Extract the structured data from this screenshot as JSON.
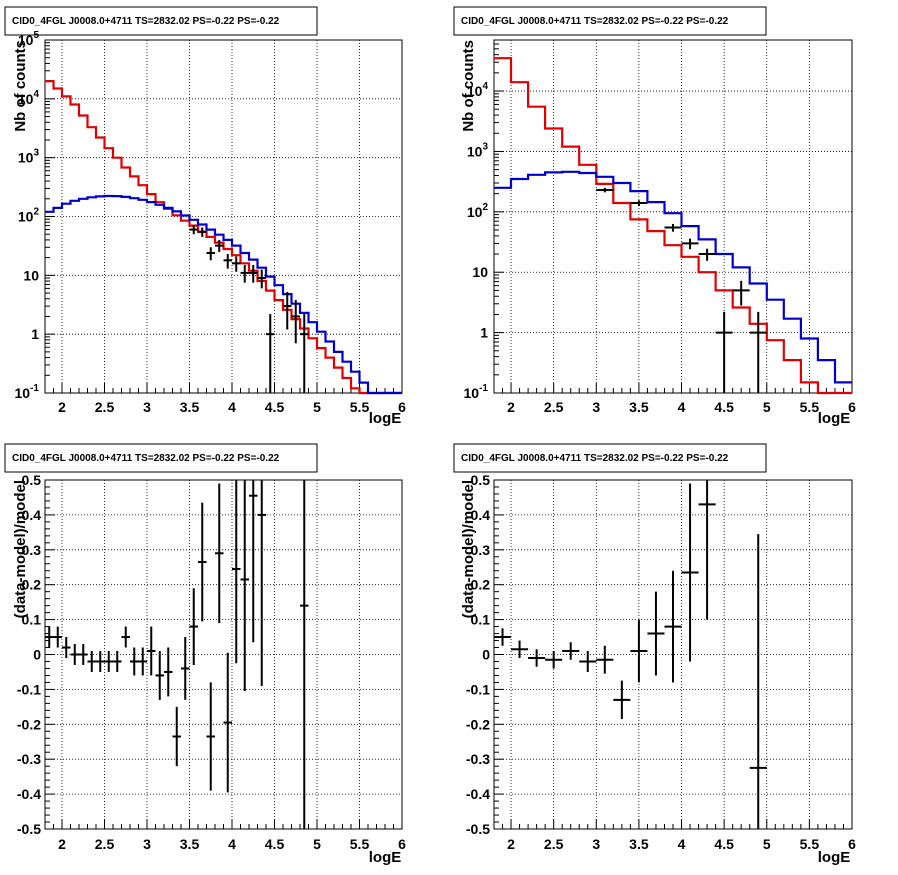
{
  "colors": {
    "total": "#e00000",
    "component": "#0000cc",
    "data": "#000000",
    "grid": "#000000"
  },
  "chart_data": [
    {
      "type": "line",
      "title": "CID0_4FGL J0008.0+4711 TS=2832.02 PS=-0.22 PS=-0.22",
      "xlabel": "logE",
      "ylabel": "Nb of counts",
      "xlim": [
        1.8,
        6.0
      ],
      "ylim": [
        0.1,
        100000
      ],
      "log_y": true,
      "grid": true,
      "x_ticks": [
        "2",
        "2.5",
        "3",
        "3.5",
        "4",
        "4.5",
        "5",
        "5.5",
        "6"
      ],
      "y_ticks": [
        "10^-1",
        "1",
        "10",
        "10^2",
        "10^3",
        "10^4",
        "10^5"
      ],
      "x_edges": [
        1.8,
        1.9,
        2.0,
        2.1,
        2.2,
        2.3,
        2.4,
        2.5,
        2.6,
        2.7,
        2.8,
        2.9,
        3.0,
        3.1,
        3.2,
        3.3,
        3.4,
        3.5,
        3.6,
        3.7,
        3.8,
        3.9,
        4.0,
        4.1,
        4.2,
        4.3,
        4.4,
        4.5,
        4.6,
        4.7,
        4.8,
        4.9,
        5.0,
        5.1,
        5.2,
        5.3,
        5.4,
        5.5,
        5.6,
        5.7,
        5.8,
        5.9,
        6.0
      ],
      "series": [
        {
          "values": [
            20000,
            15000,
            11000,
            8000,
            5200,
            3300,
            2200,
            1450,
            1000,
            680,
            480,
            340,
            240,
            175,
            135,
            105,
            85,
            70,
            55,
            45,
            36,
            28,
            22,
            16,
            12,
            8,
            5.5,
            3.8,
            2.6,
            1.8,
            1.25,
            0.85,
            0.58,
            0.4,
            0.27,
            0.18,
            0.12,
            0.1,
            0.1,
            0.1,
            0.1,
            0.1
          ]
        },
        {
          "values": [
            120,
            140,
            165,
            185,
            200,
            212,
            220,
            223,
            222,
            215,
            205,
            192,
            176,
            158,
            140,
            122,
            104,
            88,
            73,
            60,
            49,
            40,
            32,
            24,
            18.5,
            13.5,
            9.5,
            6.8,
            4.8,
            3.3,
            2.3,
            1.6,
            1.1,
            0.75,
            0.5,
            0.34,
            0.23,
            0.15,
            0.1,
            0.1,
            0.1,
            0.1
          ]
        }
      ],
      "points": [
        {
          "x": 3.55,
          "y": 60,
          "ylo": 50,
          "yhi": 70
        },
        {
          "x": 3.65,
          "y": 55,
          "ylo": 45,
          "yhi": 65
        },
        {
          "x": 3.75,
          "y": 24,
          "ylo": 18,
          "yhi": 30
        },
        {
          "x": 3.85,
          "y": 32,
          "ylo": 25,
          "yhi": 40
        },
        {
          "x": 3.95,
          "y": 18,
          "ylo": 13,
          "yhi": 23
        },
        {
          "x": 4.05,
          "y": 16,
          "ylo": 11.5,
          "yhi": 21
        },
        {
          "x": 4.15,
          "y": 11,
          "ylo": 7.5,
          "yhi": 15
        },
        {
          "x": 4.25,
          "y": 11,
          "ylo": 7.5,
          "yhi": 15
        },
        {
          "x": 4.35,
          "y": 9,
          "ylo": 6,
          "yhi": 12.5
        },
        {
          "x": 4.45,
          "y": 1,
          "ylo": 0.1,
          "yhi": 2.2
        },
        {
          "x": 4.65,
          "y": 3,
          "ylo": 1.2,
          "yhi": 5.2
        },
        {
          "x": 4.75,
          "y": 2,
          "ylo": 0.7,
          "yhi": 3.8
        },
        {
          "x": 4.85,
          "y": 1,
          "ylo": 0.1,
          "yhi": 2.2
        }
      ]
    },
    {
      "type": "line",
      "title": "CID0_4FGL J0008.0+4711 TS=2832.02 PS=-0.22 PS=-0.22",
      "xlabel": "logE",
      "ylabel": "Nb of counts",
      "xlim": [
        1.8,
        6.0
      ],
      "ylim": [
        0.1,
        70000
      ],
      "log_y": true,
      "grid": true,
      "x_ticks": [
        "2",
        "2.5",
        "3",
        "3.5",
        "4",
        "4.5",
        "5",
        "5.5",
        "6"
      ],
      "y_ticks": [
        "10^-1",
        "1",
        "10",
        "10^2",
        "10^3",
        "10^4"
      ],
      "x_edges": [
        1.8,
        2.0,
        2.2,
        2.4,
        2.6,
        2.8,
        3.0,
        3.2,
        3.4,
        3.6,
        3.8,
        4.0,
        4.2,
        4.4,
        4.6,
        4.8,
        5.0,
        5.2,
        5.4,
        5.6,
        5.8,
        6.0
      ],
      "series": [
        {
          "values": [
            35000,
            14000,
            5500,
            2400,
            1200,
            600,
            290,
            140,
            75,
            48,
            28,
            18,
            10,
            5,
            2.6,
            1.4,
            0.75,
            0.35,
            0.15,
            0.1,
            0.1
          ]
        },
        {
          "values": [
            250,
            350,
            410,
            450,
            460,
            440,
            380,
            300,
            220,
            145,
            95,
            58,
            35,
            20,
            12,
            6.5,
            3.5,
            1.7,
            0.8,
            0.35,
            0.15
          ]
        }
      ],
      "points": [
        {
          "x": 3.1,
          "y": 230,
          "ylo": 210,
          "yhi": 250
        },
        {
          "x": 3.5,
          "y": 140,
          "ylo": 125,
          "yhi": 155
        },
        {
          "x": 3.9,
          "y": 55,
          "ylo": 47,
          "yhi": 63
        },
        {
          "x": 4.1,
          "y": 30,
          "ylo": 24,
          "yhi": 36
        },
        {
          "x": 4.3,
          "y": 20,
          "ylo": 15.5,
          "yhi": 24.5
        },
        {
          "x": 4.5,
          "y": 1,
          "ylo": 0.1,
          "yhi": 2.2
        },
        {
          "x": 4.7,
          "y": 5,
          "ylo": 2.8,
          "yhi": 7.2
        },
        {
          "x": 4.9,
          "y": 1,
          "ylo": 0.1,
          "yhi": 2.2
        }
      ]
    },
    {
      "type": "scatter",
      "title": "CID0_4FGL J0008.0+4711 TS=2832.02 PS=-0.22 PS=-0.22",
      "xlabel": "logE",
      "ylabel": "(data-model)/model",
      "xlim": [
        1.8,
        6.0
      ],
      "ylim": [
        -0.5,
        0.5
      ],
      "grid": true,
      "x_ticks": [
        "2",
        "2.5",
        "3",
        "3.5",
        "4",
        "4.5",
        "5",
        "5.5",
        "6"
      ],
      "y_ticks": [
        "-0.5",
        "-0.4",
        "-0.3",
        "-0.2",
        "-0.1",
        "0",
        "0.1",
        "0.2",
        "0.3",
        "0.4",
        "0.5"
      ],
      "points": [
        {
          "x": 1.85,
          "y": 0.05,
          "yerr": 0.03
        },
        {
          "x": 1.95,
          "y": 0.05,
          "yerr": 0.03
        },
        {
          "x": 2.05,
          "y": 0.02,
          "yerr": 0.03
        },
        {
          "x": 2.15,
          "y": 0.0,
          "yerr": 0.03
        },
        {
          "x": 2.25,
          "y": 0.0,
          "yerr": 0.03
        },
        {
          "x": 2.35,
          "y": -0.02,
          "yerr": 0.03
        },
        {
          "x": 2.45,
          "y": -0.02,
          "yerr": 0.03
        },
        {
          "x": 2.55,
          "y": -0.02,
          "yerr": 0.03
        },
        {
          "x": 2.65,
          "y": -0.02,
          "yerr": 0.03
        },
        {
          "x": 2.75,
          "y": 0.05,
          "yerr": 0.03
        },
        {
          "x": 2.85,
          "y": -0.02,
          "yerr": 0.04
        },
        {
          "x": 2.95,
          "y": -0.02,
          "yerr": 0.04
        },
        {
          "x": 3.05,
          "y": 0.01,
          "yerr": 0.07
        },
        {
          "x": 3.15,
          "y": -0.06,
          "yerr": 0.07
        },
        {
          "x": 3.25,
          "y": -0.05,
          "yerr": 0.07
        },
        {
          "x": 3.35,
          "y": -0.235,
          "yerr": 0.085
        },
        {
          "x": 3.45,
          "y": -0.04,
          "yerr": 0.09
        },
        {
          "x": 3.55,
          "y": 0.08,
          "yerr": 0.11
        },
        {
          "x": 3.65,
          "y": 0.265,
          "yerr": 0.17
        },
        {
          "x": 3.75,
          "y": -0.235,
          "yerr": 0.155
        },
        {
          "x": 3.85,
          "y": 0.29,
          "yerr": 0.2
        },
        {
          "x": 3.95,
          "y": -0.195,
          "yerr": 0.2
        },
        {
          "x": 4.05,
          "y": 0.245,
          "yerr": 0.27
        },
        {
          "x": 4.15,
          "y": 0.215,
          "yerr": 0.32
        },
        {
          "x": 4.25,
          "y": 0.455,
          "yerr": 0.42
        },
        {
          "x": 4.35,
          "y": 0.4,
          "yerr": 0.49
        },
        {
          "x": 4.85,
          "y": 0.14,
          "yerr": 0.9
        }
      ]
    },
    {
      "type": "scatter",
      "title": "CID0_4FGL J0008.0+4711 TS=2832.02 PS=-0.22 PS=-0.22",
      "xlabel": "logE",
      "ylabel": "(data-model)/model",
      "xlim": [
        1.8,
        6.0
      ],
      "ylim": [
        -0.5,
        0.5
      ],
      "grid": true,
      "x_ticks": [
        "2",
        "2.5",
        "3",
        "3.5",
        "4",
        "4.5",
        "5",
        "5.5",
        "6"
      ],
      "y_ticks": [
        "-0.5",
        "-0.4",
        "-0.3",
        "-0.2",
        "-0.1",
        "0",
        "0.1",
        "0.2",
        "0.3",
        "0.4",
        "0.5"
      ],
      "points": [
        {
          "x": 1.9,
          "y": 0.05,
          "yerr": 0.025
        },
        {
          "x": 2.1,
          "y": 0.015,
          "yerr": 0.025
        },
        {
          "x": 2.3,
          "y": -0.01,
          "yerr": 0.025
        },
        {
          "x": 2.5,
          "y": -0.015,
          "yerr": 0.025
        },
        {
          "x": 2.7,
          "y": 0.01,
          "yerr": 0.025
        },
        {
          "x": 2.9,
          "y": -0.02,
          "yerr": 0.03
        },
        {
          "x": 3.1,
          "y": -0.015,
          "yerr": 0.04
        },
        {
          "x": 3.3,
          "y": -0.13,
          "yerr": 0.055
        },
        {
          "x": 3.5,
          "y": 0.01,
          "yerr": 0.09
        },
        {
          "x": 3.7,
          "y": 0.06,
          "yerr": 0.12
        },
        {
          "x": 3.9,
          "y": 0.08,
          "yerr": 0.16
        },
        {
          "x": 4.1,
          "y": 0.235,
          "yerr": 0.255
        },
        {
          "x": 4.3,
          "y": 0.43,
          "yerr": 0.33
        },
        {
          "x": 4.9,
          "y": -0.325,
          "yerr": 0.67
        }
      ]
    }
  ]
}
